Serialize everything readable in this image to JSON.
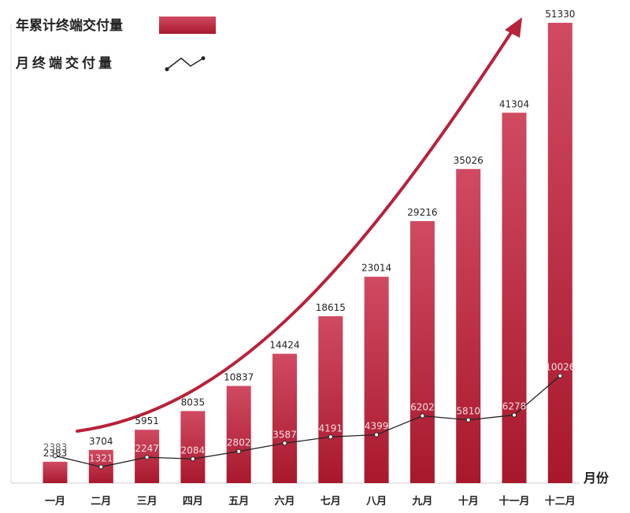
{
  "chart_data": {
    "type": "bar",
    "x_axis_label": "月份",
    "legend": {
      "placement": "top-left",
      "items": [
        {
          "label": "年累计终端交付量",
          "kind": "bar"
        },
        {
          "label": "月终端交付量",
          "kind": "line"
        }
      ]
    },
    "categories": [
      "一月",
      "二月",
      "三月",
      "四月",
      "五月",
      "六月",
      "七月",
      "八月",
      "九月",
      "十月",
      "十一月",
      "十二月"
    ],
    "series": [
      {
        "name": "年累计终端交付量",
        "type": "bar",
        "values": [
          2383,
          3704,
          5951,
          8035,
          10837,
          14424,
          18615,
          23014,
          29216,
          35026,
          41304,
          51330
        ]
      },
      {
        "name": "月终端交付量",
        "type": "line",
        "values": [
          2383,
          1321,
          2247,
          2084,
          2802,
          3587,
          4191,
          4399,
          6202,
          5810,
          6278,
          10026
        ]
      }
    ],
    "ylim": [
      0,
      51330
    ],
    "grid": false,
    "colors": {
      "bar_top": "#d04a62",
      "bar_bottom": "#a8182c",
      "line": "#222222",
      "arrow": "#b8223a"
    }
  }
}
